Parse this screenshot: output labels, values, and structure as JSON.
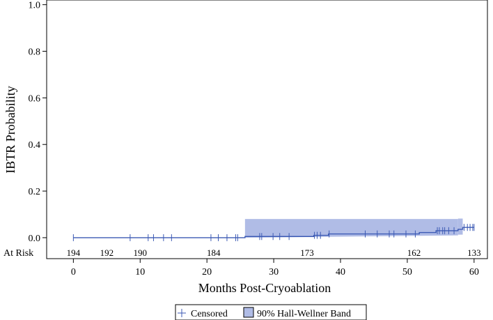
{
  "chart_data": {
    "type": "step",
    "title": "",
    "xlabel": "Months Post-Cryoablation",
    "ylabel": "IBTR Probability",
    "xlim": [
      -4,
      62
    ],
    "ylim": [
      -0.09,
      1.02
    ],
    "xticks": [
      0,
      10,
      20,
      30,
      40,
      50,
      60
    ],
    "yticks": [
      0.0,
      0.2,
      0.4,
      0.6,
      0.8,
      1.0
    ],
    "ytick_labels": [
      "0.0",
      "0.2",
      "0.4",
      "0.6",
      "0.8",
      "1.0"
    ],
    "grid": false,
    "series": [
      {
        "steps": [
          [
            0,
            0.0
          ],
          [
            25.7,
            0.0
          ],
          [
            25.7,
            0.005
          ],
          [
            36.0,
            0.005
          ],
          [
            36.0,
            0.01
          ],
          [
            38.2,
            0.01
          ],
          [
            38.2,
            0.016
          ],
          [
            51.8,
            0.016
          ],
          [
            51.8,
            0.022
          ],
          [
            54.3,
            0.022
          ],
          [
            54.3,
            0.03
          ],
          [
            57.6,
            0.03
          ],
          [
            57.6,
            0.036
          ],
          [
            58.3,
            0.036
          ],
          [
            58.3,
            0.044
          ],
          [
            60,
            0.044
          ]
        ],
        "censored_x": [
          0,
          8.5,
          11.2,
          12.0,
          13.5,
          14.7,
          20.6,
          21.7,
          23.0,
          24.3,
          24.6,
          27.9,
          28.2,
          29.9,
          30.9,
          32.3,
          36.1,
          36.5,
          37.0,
          38.3,
          43.7,
          45.5,
          47.3,
          48.0,
          49.8,
          51.2,
          54.5,
          54.8,
          55.3,
          55.6,
          56.2,
          57.0,
          58.5,
          59.0,
          59.4,
          59.8,
          60.0
        ],
        "color": "#3c5ab4"
      }
    ],
    "band": {
      "x": [
        25.7,
        57.6
      ],
      "lower": [
        0.0,
        0.01
      ],
      "upper": [
        0.08,
        0.08
      ],
      "tail_x": [
        57.6,
        58.3
      ],
      "tail_lower": 0.013,
      "tail_upper": 0.082,
      "color": "#b0bce6"
    },
    "at_risk": {
      "label": "At Risk",
      "x": [
        0,
        10,
        20,
        30,
        40,
        50,
        60
      ],
      "counts": [
        "194",
        "192",
        "190",
        "184",
        "173",
        "162",
        "133"
      ],
      "label_x": [
        0,
        5,
        10,
        21,
        35,
        51,
        60
      ]
    },
    "legend": {
      "position": "bottom",
      "items": [
        "Censored",
        "90% Hall-Wellner Band"
      ]
    }
  }
}
